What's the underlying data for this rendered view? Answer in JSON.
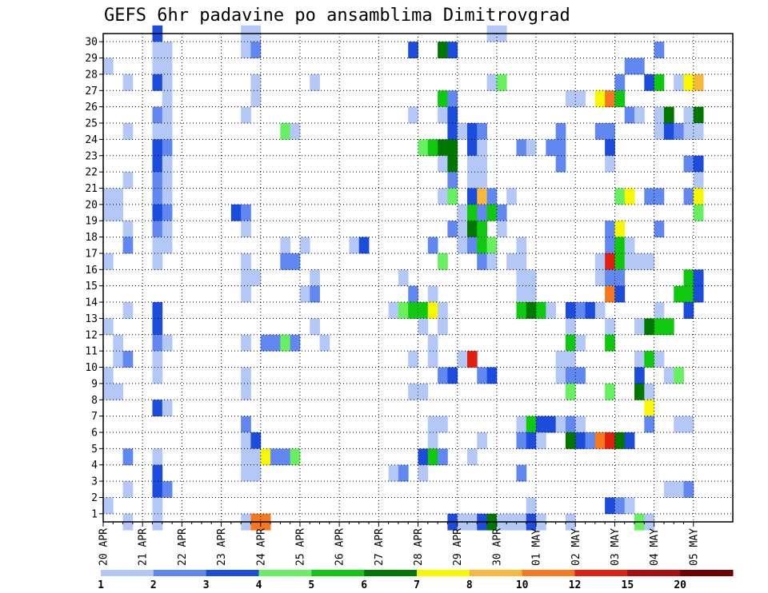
{
  "chart_data": {
    "type": "heatmap",
    "title": "GEFS 6hr padavine po ansamblima Dimitrovgrad",
    "x_tick_labels": [
      "20 APR",
      "21 APR",
      "22 APR",
      "23 APR",
      "24 APR",
      "25 APR",
      "26 APR",
      "27 APR",
      "28 APR",
      "29 APR",
      "30 APR",
      "01 MAY",
      "02 MAY",
      "03 MAY",
      "04 MAY",
      "05 MAY"
    ],
    "y_tick_labels": [
      "1",
      "2",
      "3",
      "4",
      "5",
      "6",
      "7",
      "8",
      "9",
      "10",
      "11",
      "12",
      "13",
      "14",
      "15",
      "16",
      "17",
      "18",
      "19",
      "20",
      "21",
      "22",
      "23",
      "24",
      "25",
      "26",
      "27",
      "28",
      "29",
      "30"
    ],
    "steps_per_day": 4,
    "x_steps": 61,
    "y_min": 0,
    "y_max": 30,
    "grid": true,
    "legend": {
      "position": "bottom",
      "labels": [
        "1",
        "2",
        "3",
        "4",
        "5",
        "6",
        "7",
        "8",
        "10",
        "12",
        "15",
        "20"
      ],
      "colors": [
        "#b4c8f8",
        "#6088f0",
        "#1c4cdc",
        "#68f060",
        "#10c810",
        "#007800",
        "#f8f800",
        "#f8b83c",
        "#f87820",
        "#e02010",
        "#a80c0c",
        "#700000"
      ]
    },
    "cells_note": "each cell: [time step from 20 APR 00z (6h steps), ensemble member row, color class 1-12]",
    "cells": [
      [
        5,
        30,
        3
      ],
      [
        14,
        30,
        1
      ],
      [
        15,
        30,
        1
      ],
      [
        39,
        30,
        1
      ],
      [
        40,
        30,
        1
      ],
      [
        5,
        29,
        1
      ],
      [
        6,
        29,
        1
      ],
      [
        14,
        29,
        1
      ],
      [
        15,
        29,
        2
      ],
      [
        31,
        29,
        3
      ],
      [
        34,
        29,
        6
      ],
      [
        35,
        29,
        3
      ],
      [
        56,
        29,
        2
      ],
      [
        0,
        28,
        1
      ],
      [
        5,
        28,
        1
      ],
      [
        6,
        28,
        1
      ],
      [
        53,
        28,
        2
      ],
      [
        54,
        28,
        2
      ],
      [
        2,
        27,
        1
      ],
      [
        5,
        27,
        3
      ],
      [
        6,
        27,
        1
      ],
      [
        15,
        27,
        1
      ],
      [
        21,
        27,
        1
      ],
      [
        39,
        27,
        1
      ],
      [
        40,
        27,
        4
      ],
      [
        52,
        27,
        2
      ],
      [
        55,
        27,
        3
      ],
      [
        56,
        27,
        5
      ],
      [
        58,
        27,
        1
      ],
      [
        59,
        27,
        7
      ],
      [
        60,
        27,
        8
      ],
      [
        6,
        26,
        1
      ],
      [
        15,
        26,
        1
      ],
      [
        34,
        26,
        5
      ],
      [
        35,
        26,
        2
      ],
      [
        47,
        26,
        1
      ],
      [
        48,
        26,
        1
      ],
      [
        50,
        26,
        7
      ],
      [
        51,
        26,
        9
      ],
      [
        52,
        26,
        5
      ],
      [
        5,
        25,
        2
      ],
      [
        6,
        25,
        1
      ],
      [
        14,
        25,
        1
      ],
      [
        31,
        25,
        1
      ],
      [
        34,
        25,
        1
      ],
      [
        35,
        25,
        3
      ],
      [
        53,
        25,
        2
      ],
      [
        54,
        25,
        1
      ],
      [
        56,
        25,
        1
      ],
      [
        57,
        25,
        6
      ],
      [
        59,
        25,
        1
      ],
      [
        60,
        25,
        6
      ],
      [
        2,
        24,
        1
      ],
      [
        5,
        24,
        1
      ],
      [
        6,
        24,
        1
      ],
      [
        18,
        24,
        4
      ],
      [
        19,
        24,
        1
      ],
      [
        35,
        24,
        3
      ],
      [
        36,
        24,
        1
      ],
      [
        37,
        24,
        3
      ],
      [
        38,
        24,
        2
      ],
      [
        46,
        24,
        2
      ],
      [
        50,
        24,
        2
      ],
      [
        51,
        24,
        2
      ],
      [
        56,
        24,
        1
      ],
      [
        57,
        24,
        3
      ],
      [
        58,
        24,
        2
      ],
      [
        59,
        24,
        1
      ],
      [
        60,
        24,
        1
      ],
      [
        5,
        23,
        3
      ],
      [
        6,
        23,
        2
      ],
      [
        32,
        23,
        4
      ],
      [
        33,
        23,
        5
      ],
      [
        34,
        23,
        6
      ],
      [
        35,
        23,
        6
      ],
      [
        37,
        23,
        3
      ],
      [
        38,
        23,
        1
      ],
      [
        42,
        23,
        2
      ],
      [
        43,
        23,
        1
      ],
      [
        45,
        23,
        2
      ],
      [
        46,
        23,
        2
      ],
      [
        51,
        23,
        3
      ],
      [
        5,
        22,
        3
      ],
      [
        6,
        22,
        1
      ],
      [
        34,
        22,
        1
      ],
      [
        35,
        22,
        6
      ],
      [
        37,
        22,
        1
      ],
      [
        38,
        22,
        1
      ],
      [
        46,
        22,
        2
      ],
      [
        51,
        22,
        1
      ],
      [
        59,
        22,
        2
      ],
      [
        60,
        22,
        3
      ],
      [
        5,
        21,
        2
      ],
      [
        6,
        21,
        1
      ],
      [
        2,
        21,
        1
      ],
      [
        35,
        21,
        2
      ],
      [
        37,
        21,
        1
      ],
      [
        38,
        21,
        1
      ],
      [
        60,
        21,
        1
      ],
      [
        0,
        20,
        1
      ],
      [
        1,
        20,
        1
      ],
      [
        5,
        20,
        2
      ],
      [
        6,
        20,
        1
      ],
      [
        34,
        20,
        1
      ],
      [
        35,
        20,
        4
      ],
      [
        37,
        20,
        3
      ],
      [
        38,
        20,
        8
      ],
      [
        39,
        20,
        2
      ],
      [
        41,
        20,
        1
      ],
      [
        52,
        20,
        4
      ],
      [
        53,
        20,
        7
      ],
      [
        55,
        20,
        2
      ],
      [
        56,
        20,
        2
      ],
      [
        59,
        20,
        2
      ],
      [
        60,
        20,
        7
      ],
      [
        0,
        19,
        1
      ],
      [
        1,
        19,
        1
      ],
      [
        5,
        19,
        3
      ],
      [
        6,
        19,
        2
      ],
      [
        13,
        19,
        3
      ],
      [
        14,
        19,
        2
      ],
      [
        36,
        19,
        1
      ],
      [
        37,
        19,
        5
      ],
      [
        38,
        19,
        2
      ],
      [
        39,
        19,
        5
      ],
      [
        40,
        19,
        2
      ],
      [
        60,
        19,
        4
      ],
      [
        2,
        18,
        1
      ],
      [
        5,
        18,
        2
      ],
      [
        6,
        18,
        1
      ],
      [
        14,
        18,
        1
      ],
      [
        35,
        18,
        2
      ],
      [
        36,
        18,
        1
      ],
      [
        37,
        18,
        6
      ],
      [
        38,
        18,
        5
      ],
      [
        40,
        18,
        1
      ],
      [
        51,
        18,
        2
      ],
      [
        52,
        18,
        7
      ],
      [
        56,
        18,
        2
      ],
      [
        2,
        17,
        2
      ],
      [
        5,
        17,
        1
      ],
      [
        6,
        17,
        1
      ],
      [
        18,
        17,
        1
      ],
      [
        20,
        17,
        1
      ],
      [
        25,
        17,
        1
      ],
      [
        26,
        17,
        3
      ],
      [
        33,
        17,
        2
      ],
      [
        36,
        17,
        1
      ],
      [
        37,
        17,
        2
      ],
      [
        38,
        17,
        5
      ],
      [
        39,
        17,
        4
      ],
      [
        42,
        17,
        1
      ],
      [
        51,
        17,
        2
      ],
      [
        52,
        17,
        5
      ],
      [
        53,
        17,
        1
      ],
      [
        0,
        16,
        1
      ],
      [
        5,
        16,
        1
      ],
      [
        14,
        16,
        1
      ],
      [
        18,
        16,
        2
      ],
      [
        19,
        16,
        2
      ],
      [
        34,
        16,
        4
      ],
      [
        38,
        16,
        2
      ],
      [
        39,
        16,
        1
      ],
      [
        41,
        16,
        1
      ],
      [
        42,
        16,
        1
      ],
      [
        50,
        16,
        1
      ],
      [
        51,
        16,
        10
      ],
      [
        52,
        16,
        5
      ],
      [
        53,
        16,
        1
      ],
      [
        54,
        16,
        1
      ],
      [
        55,
        16,
        1
      ],
      [
        14,
        15,
        1
      ],
      [
        15,
        15,
        1
      ],
      [
        21,
        15,
        1
      ],
      [
        30,
        15,
        1
      ],
      [
        42,
        15,
        1
      ],
      [
        43,
        15,
        1
      ],
      [
        50,
        15,
        1
      ],
      [
        51,
        15,
        2
      ],
      [
        52,
        15,
        2
      ],
      [
        59,
        15,
        5
      ],
      [
        60,
        15,
        3
      ],
      [
        14,
        14,
        1
      ],
      [
        20,
        14,
        1
      ],
      [
        21,
        14,
        2
      ],
      [
        31,
        14,
        2
      ],
      [
        33,
        14,
        1
      ],
      [
        42,
        14,
        1
      ],
      [
        43,
        14,
        1
      ],
      [
        51,
        14,
        9
      ],
      [
        52,
        14,
        3
      ],
      [
        58,
        14,
        5
      ],
      [
        59,
        14,
        5
      ],
      [
        60,
        14,
        3
      ],
      [
        2,
        13,
        1
      ],
      [
        5,
        13,
        3
      ],
      [
        29,
        13,
        1
      ],
      [
        30,
        13,
        4
      ],
      [
        31,
        13,
        5
      ],
      [
        32,
        13,
        5
      ],
      [
        33,
        13,
        7
      ],
      [
        34,
        13,
        1
      ],
      [
        42,
        13,
        5
      ],
      [
        43,
        13,
        6
      ],
      [
        44,
        13,
        5
      ],
      [
        45,
        13,
        1
      ],
      [
        47,
        13,
        3
      ],
      [
        48,
        13,
        2
      ],
      [
        49,
        13,
        3
      ],
      [
        50,
        13,
        1
      ],
      [
        56,
        13,
        1
      ],
      [
        59,
        13,
        3
      ],
      [
        0,
        12,
        1
      ],
      [
        5,
        12,
        3
      ],
      [
        21,
        12,
        1
      ],
      [
        32,
        12,
        1
      ],
      [
        34,
        12,
        1
      ],
      [
        47,
        12,
        1
      ],
      [
        51,
        12,
        1
      ],
      [
        54,
        12,
        1
      ],
      [
        55,
        12,
        6
      ],
      [
        56,
        12,
        5
      ],
      [
        57,
        12,
        5
      ],
      [
        1,
        11,
        1
      ],
      [
        5,
        11,
        2
      ],
      [
        6,
        11,
        1
      ],
      [
        14,
        11,
        1
      ],
      [
        16,
        11,
        2
      ],
      [
        17,
        11,
        2
      ],
      [
        18,
        11,
        4
      ],
      [
        19,
        11,
        2
      ],
      [
        22,
        11,
        1
      ],
      [
        33,
        11,
        1
      ],
      [
        47,
        11,
        5
      ],
      [
        48,
        11,
        1
      ],
      [
        51,
        11,
        5
      ],
      [
        1,
        10,
        1
      ],
      [
        2,
        10,
        2
      ],
      [
        5,
        10,
        1
      ],
      [
        31,
        10,
        1
      ],
      [
        33,
        10,
        1
      ],
      [
        36,
        10,
        1
      ],
      [
        37,
        10,
        10
      ],
      [
        46,
        10,
        1
      ],
      [
        47,
        10,
        1
      ],
      [
        54,
        10,
        1
      ],
      [
        55,
        10,
        5
      ],
      [
        56,
        10,
        1
      ],
      [
        0,
        9,
        1
      ],
      [
        5,
        9,
        1
      ],
      [
        14,
        9,
        1
      ],
      [
        34,
        9,
        2
      ],
      [
        35,
        9,
        3
      ],
      [
        38,
        9,
        2
      ],
      [
        39,
        9,
        3
      ],
      [
        46,
        9,
        1
      ],
      [
        47,
        9,
        2
      ],
      [
        48,
        9,
        2
      ],
      [
        54,
        9,
        3
      ],
      [
        57,
        9,
        1
      ],
      [
        58,
        9,
        4
      ],
      [
        0,
        8,
        1
      ],
      [
        1,
        8,
        1
      ],
      [
        14,
        8,
        1
      ],
      [
        31,
        8,
        1
      ],
      [
        32,
        8,
        1
      ],
      [
        47,
        8,
        4
      ],
      [
        51,
        8,
        4
      ],
      [
        54,
        8,
        6
      ],
      [
        55,
        8,
        1
      ],
      [
        5,
        7,
        3
      ],
      [
        6,
        7,
        1
      ],
      [
        55,
        7,
        7
      ],
      [
        14,
        6,
        2
      ],
      [
        33,
        6,
        1
      ],
      [
        34,
        6,
        1
      ],
      [
        42,
        6,
        1
      ],
      [
        43,
        6,
        5
      ],
      [
        44,
        6,
        3
      ],
      [
        45,
        6,
        3
      ],
      [
        46,
        6,
        1
      ],
      [
        47,
        6,
        2
      ],
      [
        48,
        6,
        1
      ],
      [
        55,
        6,
        2
      ],
      [
        58,
        6,
        1
      ],
      [
        59,
        6,
        1
      ],
      [
        14,
        5,
        1
      ],
      [
        15,
        5,
        3
      ],
      [
        33,
        5,
        1
      ],
      [
        38,
        5,
        1
      ],
      [
        42,
        5,
        2
      ],
      [
        43,
        5,
        3
      ],
      [
        44,
        5,
        1
      ],
      [
        47,
        5,
        6
      ],
      [
        48,
        5,
        3
      ],
      [
        49,
        5,
        2
      ],
      [
        50,
        5,
        9
      ],
      [
        51,
        5,
        10
      ],
      [
        52,
        5,
        6
      ],
      [
        53,
        5,
        3
      ],
      [
        2,
        4,
        2
      ],
      [
        5,
        4,
        1
      ],
      [
        14,
        4,
        1
      ],
      [
        15,
        4,
        1
      ],
      [
        16,
        4,
        7
      ],
      [
        17,
        4,
        2
      ],
      [
        18,
        4,
        2
      ],
      [
        19,
        4,
        4
      ],
      [
        32,
        4,
        3
      ],
      [
        33,
        4,
        5
      ],
      [
        34,
        4,
        2
      ],
      [
        37,
        4,
        1
      ],
      [
        5,
        3,
        3
      ],
      [
        14,
        3,
        1
      ],
      [
        15,
        3,
        1
      ],
      [
        29,
        3,
        1
      ],
      [
        30,
        3,
        2
      ],
      [
        32,
        3,
        1
      ],
      [
        42,
        3,
        2
      ],
      [
        2,
        2,
        1
      ],
      [
        5,
        2,
        3
      ],
      [
        6,
        2,
        2
      ],
      [
        57,
        2,
        1
      ],
      [
        58,
        2,
        1
      ],
      [
        59,
        2,
        2
      ],
      [
        0,
        1,
        1
      ],
      [
        5,
        1,
        1
      ],
      [
        43,
        1,
        1
      ],
      [
        51,
        1,
        3
      ],
      [
        52,
        1,
        2
      ],
      [
        53,
        1,
        1
      ],
      [
        2,
        0,
        1
      ],
      [
        5,
        0,
        1
      ],
      [
        14,
        0,
        1
      ],
      [
        15,
        0,
        9
      ],
      [
        16,
        0,
        9
      ],
      [
        35,
        0,
        3
      ],
      [
        36,
        0,
        1
      ],
      [
        37,
        0,
        1
      ],
      [
        38,
        0,
        3
      ],
      [
        39,
        0,
        6
      ],
      [
        40,
        0,
        1
      ],
      [
        41,
        0,
        1
      ],
      [
        42,
        0,
        1
      ],
      [
        43,
        0,
        3
      ],
      [
        44,
        0,
        1
      ],
      [
        47,
        0,
        1
      ],
      [
        54,
        0,
        4
      ],
      [
        55,
        0,
        1
      ]
    ]
  }
}
